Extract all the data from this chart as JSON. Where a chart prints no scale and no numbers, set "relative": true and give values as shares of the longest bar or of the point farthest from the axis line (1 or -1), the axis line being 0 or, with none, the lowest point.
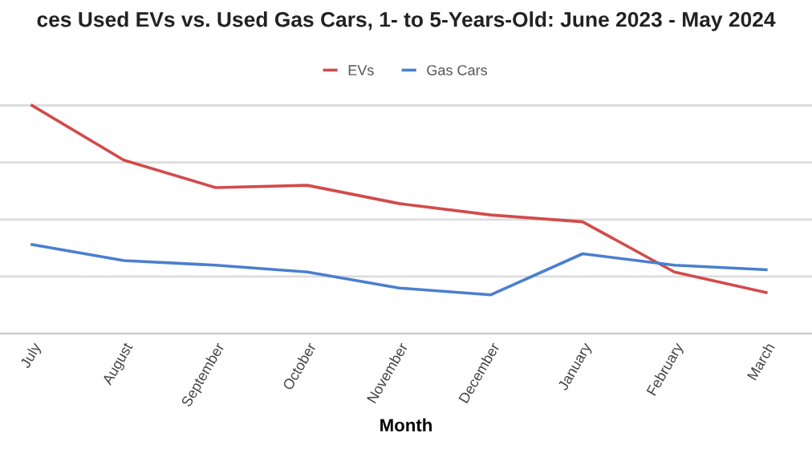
{
  "chart_data": {
    "type": "line",
    "title": "ces Used EVs vs. Used Gas Cars, 1- to 5-Years-Old: June 2023 - May 2024",
    "xlabel": "Month",
    "relative": true,
    "grid": "y",
    "legend": "top",
    "categories": [
      "July",
      "August",
      "September",
      "October",
      "November",
      "December",
      "January",
      "February",
      "March"
    ],
    "series": [
      {
        "name": "EVs",
        "color": "#d24b4b",
        "values": [
          1,
          0.76,
          0.64,
          0.65,
          0.57,
          0.52,
          0.49,
          0.27,
          0.18
        ]
      },
      {
        "name": "Gas Cars",
        "color": "#4a7fcf",
        "values": [
          0.39,
          0.32,
          0.3,
          0.27,
          0.2,
          0.17,
          0.35,
          0.3,
          0.28
        ]
      }
    ]
  }
}
